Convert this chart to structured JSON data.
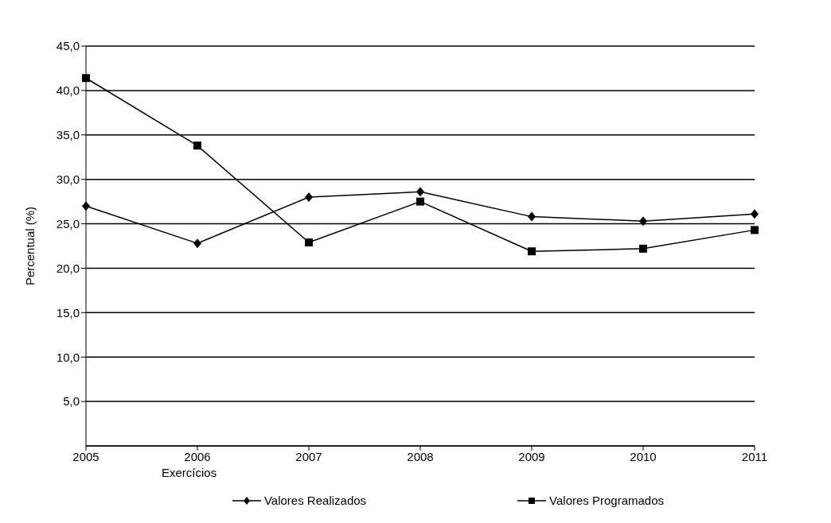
{
  "chart_data": {
    "type": "line",
    "xlabel": "Exercícios",
    "ylabel": "Percentual (%)",
    "categories": [
      "2005",
      "2006",
      "2007",
      "2008",
      "2009",
      "2010",
      "2011"
    ],
    "series": [
      {
        "name": "Valores Realizados",
        "color": "#000000",
        "marker": "diamond",
        "values": [
          27.0,
          22.8,
          28.0,
          28.6,
          25.8,
          25.3,
          26.1
        ]
      },
      {
        "name": "Valores Programados",
        "color": "#000000",
        "marker": "square",
        "values": [
          41.4,
          33.8,
          22.9,
          27.5,
          21.9,
          22.2,
          24.3
        ]
      }
    ],
    "ylim": [
      0,
      45
    ],
    "yticks": [
      {
        "value": 5,
        "label": "5,0"
      },
      {
        "value": 10,
        "label": "10,0"
      },
      {
        "value": 15,
        "label": "15,0"
      },
      {
        "value": 20,
        "label": "20,0"
      },
      {
        "value": 25,
        "label": "25,0"
      },
      {
        "value": 30,
        "label": "30,0"
      },
      {
        "value": 35,
        "label": "35,0"
      },
      {
        "value": 40,
        "label": "40,0"
      },
      {
        "value": 45,
        "label": "45,0"
      }
    ],
    "grid": "y",
    "legend": "bottom",
    "line_style": "solid"
  }
}
